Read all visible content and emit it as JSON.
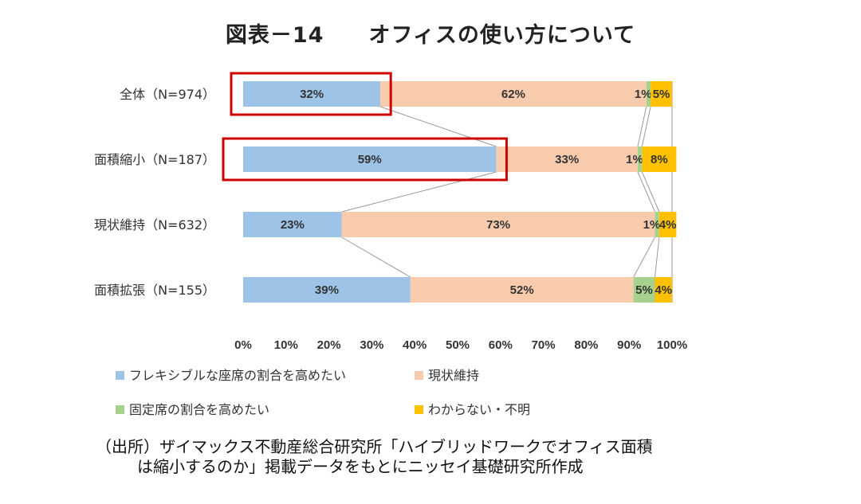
{
  "chart_data": {
    "type": "bar",
    "orientation": "horizontal",
    "stacked": true,
    "title": "図表－14　　オフィスの使い方について",
    "categories": [
      "全体（N=974）",
      "面積縮小（N=187）",
      "現状維持（N=632）",
      "面積拡張（N=155）"
    ],
    "series": [
      {
        "name": "フレキシブルな座席の割合を高めたい",
        "color": "#9dc3e6",
        "values": [
          32,
          59,
          23,
          39
        ],
        "labels": [
          "32%",
          "59%",
          "23%",
          "39%"
        ]
      },
      {
        "name": "現状維持",
        "color": "#f8cbad",
        "values": [
          62,
          33,
          73,
          52
        ],
        "labels": [
          "62%",
          "33%",
          "73%",
          "52%"
        ]
      },
      {
        "name": "固定席の割合を高めたい",
        "color": "#a9d18e",
        "values": [
          1,
          1,
          1,
          5
        ],
        "labels": [
          "1%",
          "1%",
          "1%",
          "5%"
        ]
      },
      {
        "name": "わからない・不明",
        "color": "#ffc000",
        "values": [
          5,
          8,
          4,
          4
        ],
        "labels": [
          "5%",
          "8%",
          "4%",
          "4%"
        ]
      }
    ],
    "xlim": [
      0,
      100
    ],
    "x_ticks": [
      "0%",
      "10%",
      "20%",
      "30%",
      "40%",
      "50%",
      "60%",
      "70%",
      "80%",
      "90%",
      "100%"
    ],
    "highlighted_categories": [
      0,
      1
    ],
    "highlight_color": "#cc0000",
    "series_lines": true,
    "legend_position": "bottom"
  },
  "source": {
    "line1": "（出所）ザイマックス不動産総合研究所「ハイブリッドワークでオフィス面積",
    "line2": "は縮小するのか」掲載データをもとにニッセイ基礎研究所作成"
  }
}
